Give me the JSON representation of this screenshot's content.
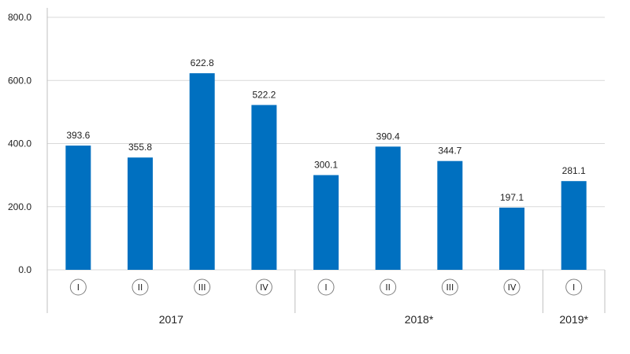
{
  "chart_data": {
    "type": "bar",
    "title": "",
    "xlabel": "",
    "ylabel": "",
    "ylim": [
      0,
      800
    ],
    "yticks": [
      "0.0",
      "200.0",
      "400.0",
      "600.0",
      "800.0"
    ],
    "grid": true,
    "bar_color": "#0070c0",
    "categories": [
      "I",
      "II",
      "III",
      "IV",
      "I",
      "II",
      "III",
      "IV",
      "I"
    ],
    "values": [
      393.6,
      355.8,
      622.8,
      522.2,
      300.1,
      390.4,
      344.7,
      197.1,
      281.1
    ],
    "value_labels": [
      "393.6",
      "355.8",
      "622.8",
      "522.2",
      "300.1",
      "390.4",
      "344.7",
      "197.1",
      "281.1"
    ],
    "groups": [
      {
        "label": "2017",
        "count": 4
      },
      {
        "label": "2018*",
        "count": 4
      },
      {
        "label": "2019*",
        "count": 1
      }
    ]
  }
}
